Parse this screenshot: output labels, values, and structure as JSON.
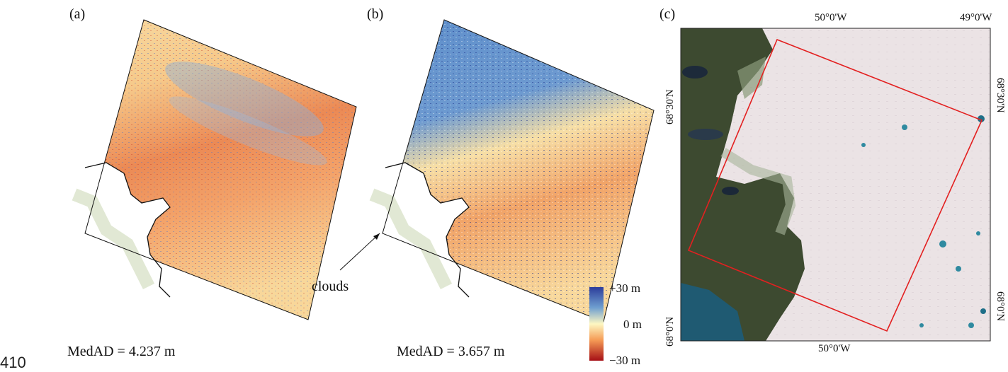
{
  "line_number": "410",
  "panels": {
    "a": {
      "label": "(a)",
      "medad": "MedAD = 4.237 m"
    },
    "b": {
      "label": "(b)",
      "medad": "MedAD = 3.657 m",
      "annotation": "clouds"
    },
    "c": {
      "label": "(c)",
      "top_ticks": [
        "50°0'W",
        "49°0'W"
      ],
      "bottom_ticks": [
        "50°0'W"
      ],
      "left_ticks": [
        "68°30'N",
        "68°0'N"
      ],
      "right_ticks": [
        "68°30'N",
        "68°0'N"
      ]
    }
  },
  "colorbar": {
    "labels": [
      "+30 m",
      "0 m",
      "−30 m"
    ],
    "colors": [
      "#2c3d9b",
      "#6f9fd0",
      "#fdf7c2",
      "#f59b55",
      "#a50f15"
    ]
  },
  "colors": {
    "footprint": "#e32020",
    "ice": "#ece4e6",
    "land": "#3b4a30",
    "water": "#205a70"
  }
}
